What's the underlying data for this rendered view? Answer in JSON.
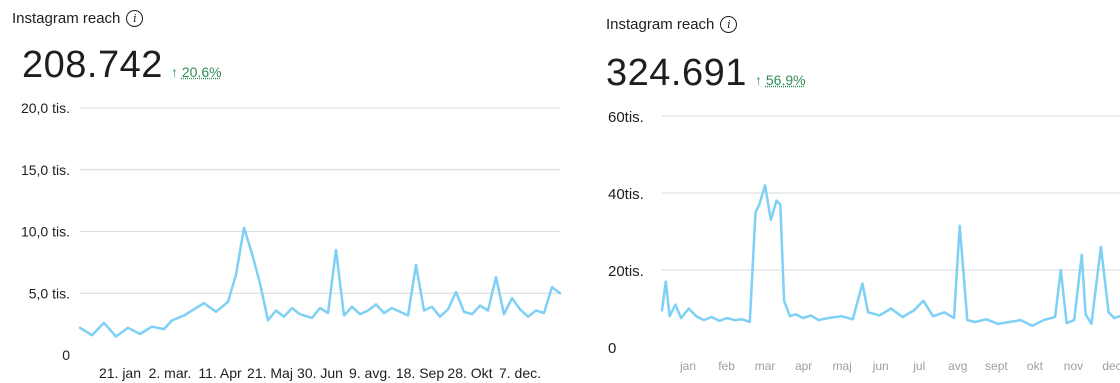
{
  "charts": [
    {
      "header": {
        "title": "Instagram reach",
        "info_glyph": "i"
      },
      "total": {
        "value": "208.742",
        "change_arrow": "↑",
        "change_pct": "20.6%"
      },
      "line_color": "#7fd0f5",
      "change_color": "#2e8b57"
    },
    {
      "header": {
        "title": "Instagram reach",
        "info_glyph": "i"
      },
      "total": {
        "value": "324.691",
        "change_arrow": "↑",
        "change_pct": "56.9%"
      },
      "line_color": "#7fd0f5",
      "change_color": "#2e8b57"
    }
  ],
  "chart_data": [
    {
      "type": "line",
      "title": "Instagram reach",
      "ylim": [
        0,
        20000
      ],
      "y_ticks": [
        0,
        5000,
        10000,
        15000,
        20000
      ],
      "y_tick_labels": [
        "0",
        "5,0 tis.",
        "10,0 tis.",
        "15,0 tis.",
        "20,0 tis."
      ],
      "x_tick_labels": [
        "21. jan",
        "2. mar.",
        "11. Apr",
        "21. Maj",
        "30. Jun",
        "9. avg.",
        "18. Sep",
        "28. Okt",
        "7. dec."
      ],
      "xlim": [
        0,
        12
      ],
      "series": [
        {
          "x": [
            0,
            0.3,
            0.6,
            0.9,
            1.2,
            1.5,
            1.8,
            2.1,
            2.3,
            2.6,
            2.9,
            3.1,
            3.4,
            3.7,
            3.9,
            4.1,
            4.3,
            4.5,
            4.7,
            4.9,
            5.1,
            5.3,
            5.5,
            5.8,
            6.0,
            6.2,
            6.4,
            6.6,
            6.8,
            7.0,
            7.2,
            7.4,
            7.6,
            7.8,
            8.0,
            8.2,
            8.4,
            8.6,
            8.8,
            9.0,
            9.2,
            9.4,
            9.6,
            9.8,
            10.0,
            10.2,
            10.4,
            10.6,
            10.8,
            11.0,
            11.2,
            11.4,
            11.6,
            11.8,
            12.0
          ],
          "y": [
            2200,
            1600,
            2600,
            1500,
            2200,
            1700,
            2300,
            2100,
            2800,
            3200,
            3800,
            4200,
            3500,
            4300,
            6500,
            10300,
            8200,
            5800,
            2800,
            3600,
            3100,
            3800,
            3300,
            3000,
            3800,
            3400,
            8500,
            3200,
            3900,
            3300,
            3600,
            4100,
            3400,
            3800,
            3500,
            3200,
            7300,
            3600,
            3900,
            3100,
            3700,
            5100,
            3500,
            3300,
            4000,
            3600,
            6300,
            3300,
            4600,
            3700,
            3100,
            3600,
            3400,
            5500,
            5000
          ]
        }
      ]
    },
    {
      "type": "line",
      "title": "Instagram reach",
      "ylim": [
        0,
        60000
      ],
      "y_ticks": [
        0,
        20000,
        40000,
        60000
      ],
      "y_tick_labels": [
        "0",
        "20tis.",
        "40tis.",
        "60tis."
      ],
      "x_tick_labels": [
        "jan",
        "feb",
        "mar",
        "apr",
        "maj",
        "jun",
        "jul",
        "avg",
        "sept",
        "okt",
        "nov",
        "dec"
      ],
      "xlim": [
        0,
        12
      ],
      "series": [
        {
          "x": [
            0,
            0.1,
            0.2,
            0.35,
            0.5,
            0.7,
            0.9,
            1.1,
            1.3,
            1.5,
            1.7,
            1.9,
            2.1,
            2.3,
            2.45,
            2.55,
            2.7,
            2.85,
            3.0,
            3.1,
            3.2,
            3.35,
            3.5,
            3.7,
            3.9,
            4.1,
            4.4,
            4.7,
            5.0,
            5.25,
            5.4,
            5.7,
            6.0,
            6.3,
            6.6,
            6.85,
            7.1,
            7.4,
            7.65,
            7.8,
            8.0,
            8.2,
            8.5,
            8.8,
            9.1,
            9.4,
            9.7,
            10.0,
            10.3,
            10.45,
            10.6,
            10.8,
            11.0,
            11.1,
            11.25,
            11.5,
            11.7,
            11.85,
            12.0
          ],
          "y": [
            9500,
            17000,
            8000,
            11000,
            7500,
            10000,
            8000,
            7000,
            7800,
            6800,
            7500,
            7000,
            7200,
            6500,
            35000,
            37000,
            42000,
            33000,
            38000,
            37000,
            12000,
            8000,
            8500,
            7500,
            8200,
            7000,
            7600,
            8000,
            7200,
            16500,
            9000,
            8200,
            10000,
            7800,
            9500,
            12000,
            8000,
            9000,
            7500,
            31500,
            7000,
            6500,
            7200,
            6000,
            6500,
            7000,
            5500,
            7000,
            7800,
            20000,
            6200,
            7000,
            24000,
            8500,
            6000,
            26000,
            9000,
            7500,
            8000
          ]
        }
      ]
    }
  ]
}
